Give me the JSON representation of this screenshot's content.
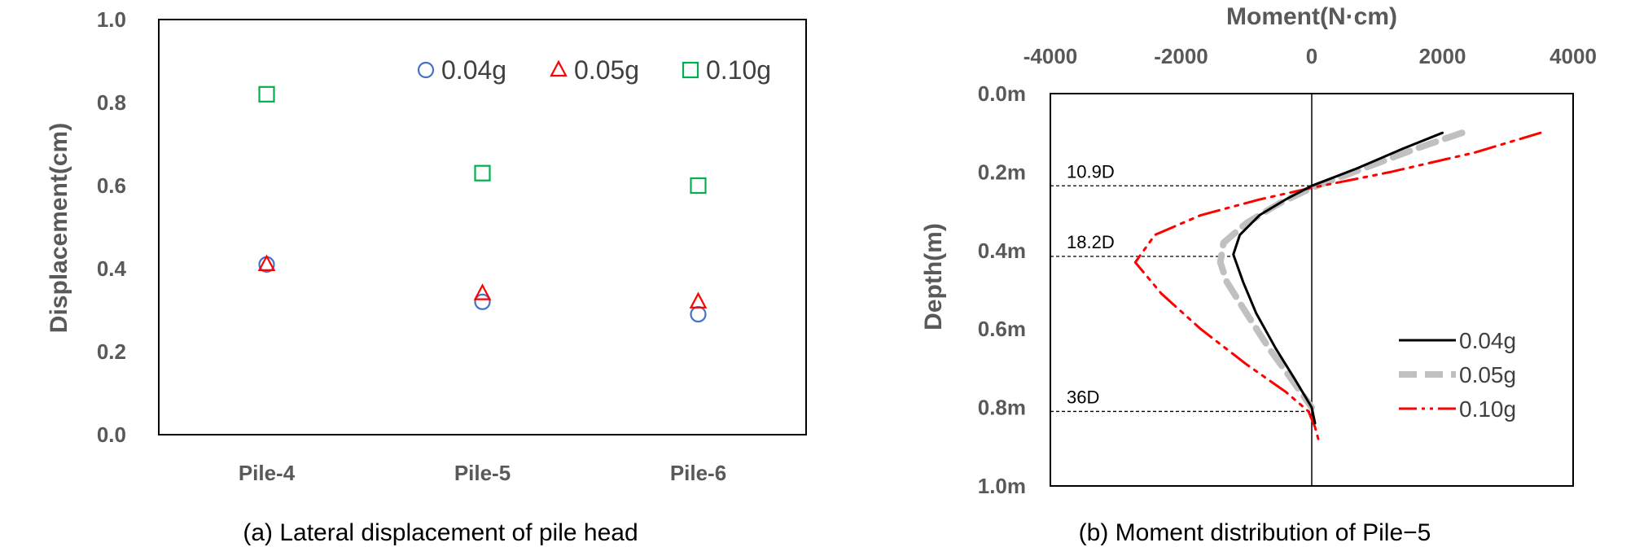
{
  "chart_data": [
    {
      "type": "scatter",
      "caption": "(a) Lateral displacement of pile head",
      "ylabel": "Displacement(cm)",
      "categories": [
        "Pile-4",
        "Pile-5",
        "Pile-6"
      ],
      "ylim": [
        0,
        1.0
      ],
      "yticks": [
        "0.0",
        "0.2",
        "0.4",
        "0.6",
        "0.8",
        "1.0"
      ],
      "legend_position": "top-right",
      "series": [
        {
          "name": "0.04g",
          "marker": "circle",
          "color": "#4472C4",
          "values": [
            0.41,
            0.32,
            0.29
          ]
        },
        {
          "name": "0.05g",
          "marker": "triangle",
          "color": "#FF0000",
          "values": [
            0.41,
            0.34,
            0.32
          ]
        },
        {
          "name": "0.10g",
          "marker": "square",
          "color": "#00B050",
          "values": [
            0.82,
            0.63,
            0.6
          ]
        }
      ]
    },
    {
      "type": "line",
      "caption": "(b) Moment distribution of Pile−5",
      "xlabel": "Moment(N·cm)",
      "ylabel": "Depth(m)",
      "xlim": [
        -4000,
        4000
      ],
      "ylim": [
        0,
        1.0
      ],
      "xticks": [
        "-4000",
        "-2000",
        "0",
        "2000",
        "4000"
      ],
      "yticks": [
        "0.0m",
        "0.2m",
        "0.4m",
        "0.6m",
        "0.8m",
        "1.0m"
      ],
      "legend_position": "bottom-right",
      "annotations": [
        {
          "label": "10.9D",
          "depth": 0.235
        },
        {
          "label": "18.2D",
          "depth": 0.415
        },
        {
          "label": "36D",
          "depth": 0.81
        }
      ],
      "series": [
        {
          "name": "0.04g",
          "color": "#000000",
          "style": "solid",
          "points": [
            [
              2000,
              0.1
            ],
            [
              1400,
              0.14
            ],
            [
              700,
              0.19
            ],
            [
              0,
              0.235
            ],
            [
              -400,
              0.27
            ],
            [
              -800,
              0.31
            ],
            [
              -1100,
              0.36
            ],
            [
              -1200,
              0.41
            ],
            [
              -1050,
              0.48
            ],
            [
              -850,
              0.56
            ],
            [
              -550,
              0.65
            ],
            [
              -250,
              0.73
            ],
            [
              0,
              0.8
            ],
            [
              50,
              0.84
            ]
          ]
        },
        {
          "name": "0.05g",
          "color": "#C0C0C0",
          "style": "dash",
          "points": [
            [
              2300,
              0.1
            ],
            [
              1600,
              0.14
            ],
            [
              800,
              0.19
            ],
            [
              0,
              0.24
            ],
            [
              -500,
              0.28
            ],
            [
              -1000,
              0.33
            ],
            [
              -1350,
              0.38
            ],
            [
              -1400,
              0.43
            ],
            [
              -1300,
              0.48
            ],
            [
              -1000,
              0.56
            ],
            [
              -650,
              0.65
            ],
            [
              -300,
              0.73
            ],
            [
              0,
              0.8
            ]
          ]
        },
        {
          "name": "0.10g",
          "color": "#FF0000",
          "style": "dashdotdot",
          "points": [
            [
              3500,
              0.1
            ],
            [
              2500,
              0.15
            ],
            [
              1200,
              0.2
            ],
            [
              0,
              0.24
            ],
            [
              -800,
              0.27
            ],
            [
              -1700,
              0.31
            ],
            [
              -2400,
              0.36
            ],
            [
              -2700,
              0.43
            ],
            [
              -2300,
              0.51
            ],
            [
              -1700,
              0.6
            ],
            [
              -1000,
              0.69
            ],
            [
              -400,
              0.76
            ],
            [
              -50,
              0.81
            ],
            [
              50,
              0.85
            ],
            [
              100,
              0.88
            ]
          ]
        }
      ]
    }
  ]
}
